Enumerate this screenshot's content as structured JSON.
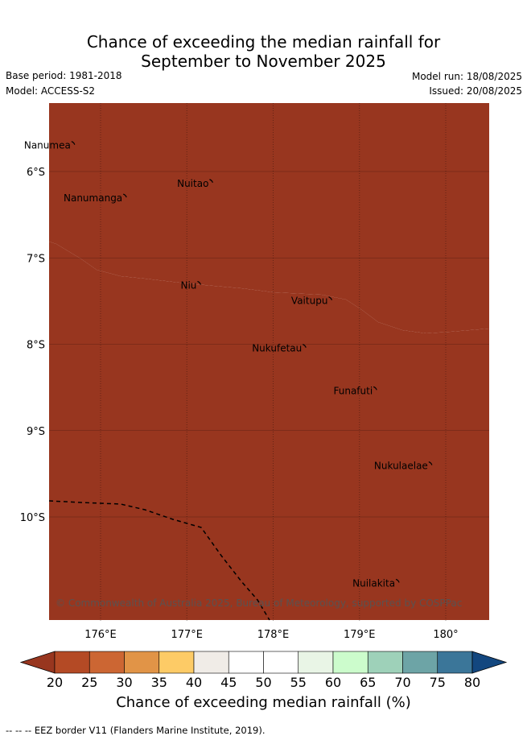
{
  "title_line1": "Chance of exceeding the median rainfall for",
  "title_line2": "September to November 2025",
  "base_period": "Base period: 1981-2018",
  "model": "Model: ACCESS-S2",
  "model_run": "Model run: 18/08/2025",
  "issued": "Issued: 20/08/2025",
  "copyright": "© Commonwealth of Australia 2025, Bureau of Meteorology, supported by COSPPac",
  "lat_ticks": [
    "6°S",
    "7°S",
    "8°S",
    "9°S",
    "10°S"
  ],
  "lon_ticks": [
    "176°E",
    "177°E",
    "178°E",
    "179°E",
    "180°"
  ],
  "places": [
    {
      "name": "Nanumea",
      "lon": 175.7,
      "lat": -5.68
    },
    {
      "name": "Nuitao",
      "lon": 177.3,
      "lat": -6.12
    },
    {
      "name": "Nanumanga",
      "lon": 176.3,
      "lat": -6.29
    },
    {
      "name": "Niu",
      "lon": 177.16,
      "lat": -7.3
    },
    {
      "name": "Vaitupu",
      "lon": 178.68,
      "lat": -7.48
    },
    {
      "name": "Nukufetau",
      "lon": 178.38,
      "lat": -8.03
    },
    {
      "name": "Funafuti",
      "lon": 179.2,
      "lat": -8.52
    },
    {
      "name": "Nukulaelae",
      "lon": 179.84,
      "lat": -9.39
    },
    {
      "name": "Nuilakita",
      "lon": 179.46,
      "lat": -10.75
    }
  ],
  "colorbar": {
    "ticks": [
      "20",
      "25",
      "30",
      "35",
      "40",
      "45",
      "50",
      "55",
      "60",
      "65",
      "70",
      "75",
      "80"
    ],
    "colors": [
      "#b44a25",
      "#cc6633",
      "#e19447",
      "#fdcb66",
      "#f0ece7",
      "#ffffff",
      "#ffffff",
      "#e9f5e6",
      "#ccfccc",
      "#9ed1b9",
      "#6da4a6",
      "#3b7699"
    ],
    "under_color": "#98361f",
    "over_color": "#13477f",
    "label": "Chance of exceeding median rainfall (%)"
  },
  "footnote": "-- -- -- EEZ border V11 (Flanders Marine Institute, 2019)."
}
